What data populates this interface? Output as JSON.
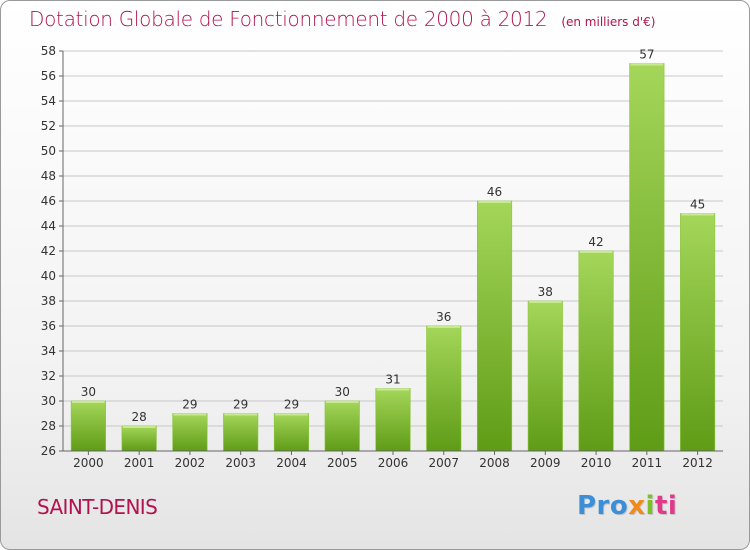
{
  "header": {
    "title": "Dotation Globale de Fonctionnement de 2000 à 2012",
    "unit": "(en milliers d'€)"
  },
  "footer": {
    "town": "SAINT-DENIS",
    "logo": {
      "p1": "Pro",
      "p2": "x",
      "p3": "i",
      "p4": "ti"
    }
  },
  "colors": {
    "title": "#b2124d",
    "bar_light": "#a4d65a",
    "bar_dark": "#5f9c16",
    "grid": "#c8c8c8",
    "axis": "#666666"
  },
  "chart_data": {
    "type": "bar",
    "title": "Dotation Globale de Fonctionnement de 2000 à 2012",
    "subtitle": "(en milliers d'€)",
    "xlabel": "",
    "ylabel": "",
    "categories": [
      "2000",
      "2001",
      "2002",
      "2003",
      "2004",
      "2005",
      "2006",
      "2007",
      "2008",
      "2009",
      "2010",
      "2011",
      "2012"
    ],
    "values": [
      30,
      28,
      29,
      29,
      29,
      30,
      31,
      36,
      46,
      38,
      42,
      57,
      45
    ],
    "data_labels": [
      "30",
      "28",
      "29",
      "29",
      "29",
      "30",
      "31",
      "36",
      "46",
      "38",
      "42",
      "57",
      "45"
    ],
    "ylim": [
      26,
      58
    ],
    "yticks": [
      26,
      28,
      30,
      32,
      34,
      36,
      38,
      40,
      42,
      44,
      46,
      48,
      50,
      52,
      54,
      56,
      58
    ],
    "grid": true,
    "legend": "none"
  }
}
